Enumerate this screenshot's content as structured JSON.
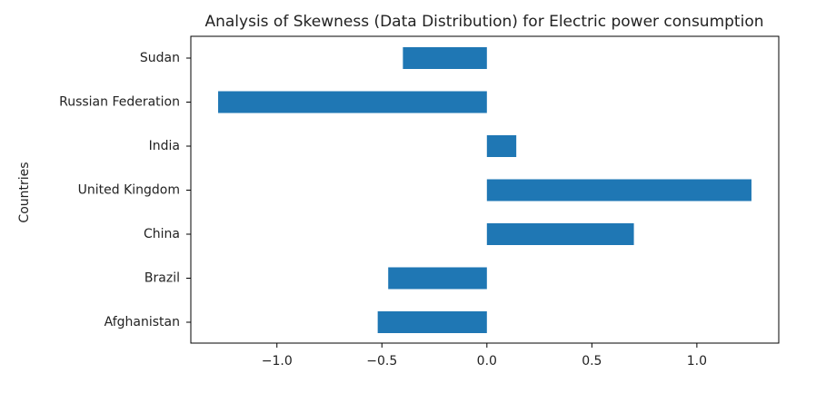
{
  "chart_data": {
    "type": "bar",
    "orientation": "horizontal",
    "title": "Analysis of Skewness (Data Distribution) for Electric power consumption",
    "xlabel": "",
    "ylabel": "Countries",
    "categories": [
      "Afghanistan",
      "Brazil",
      "China",
      "United Kingdom",
      "India",
      "Russian Federation",
      "Sudan"
    ],
    "values": [
      -0.52,
      -0.47,
      0.7,
      1.26,
      0.14,
      -1.28,
      -0.4
    ],
    "xlim": [
      -1.41,
      1.39
    ],
    "xticks": [
      -1.0,
      -0.5,
      0.0,
      0.5,
      1.0
    ],
    "xtick_labels": [
      "−1.0",
      "−0.5",
      "0.0",
      "0.5",
      "1.0"
    ],
    "bar_color": "#1f77b4",
    "grid": false,
    "legend": "none"
  }
}
